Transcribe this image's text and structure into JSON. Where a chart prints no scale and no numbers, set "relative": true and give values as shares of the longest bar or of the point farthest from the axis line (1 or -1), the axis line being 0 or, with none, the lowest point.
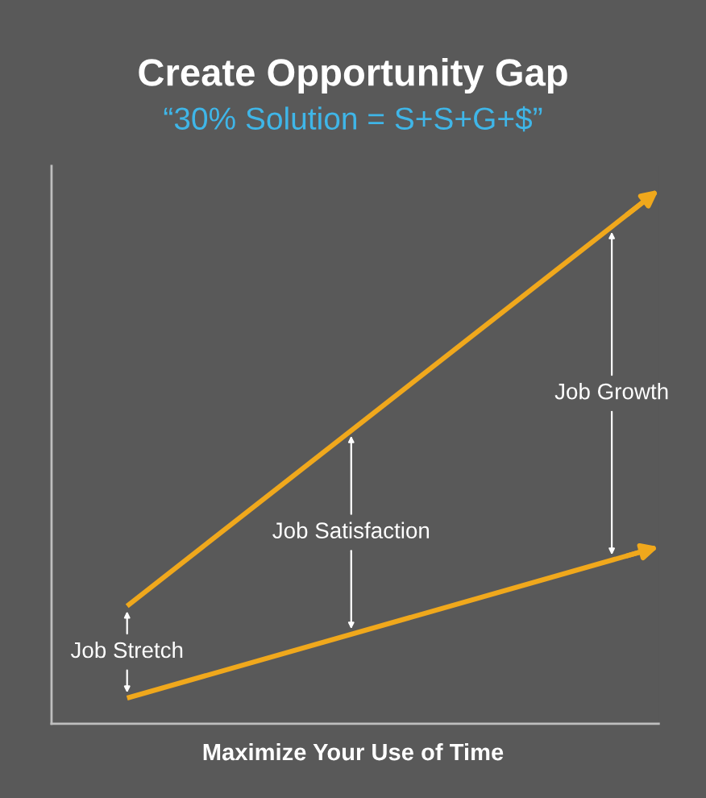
{
  "chart_data": {
    "type": "line",
    "title": "Create Opportunity Gap",
    "subtitle": "“30% Solution = S+S+G+$”",
    "xlabel": "Maximize Your Use of Time",
    "categories": [
      null,
      null
    ],
    "relative": true,
    "series": [
      {
        "color": "#f0a81c",
        "values": [
          0.224,
          1.0
        ]
      },
      {
        "color": "#f0a81c",
        "values": [
          0.049,
          0.331
        ]
      }
    ],
    "annotations": [
      "Job Stretch",
      "Job Satisfaction",
      "Job Growth"
    ],
    "grid": false,
    "legend": false,
    "line_style": "solid"
  }
}
